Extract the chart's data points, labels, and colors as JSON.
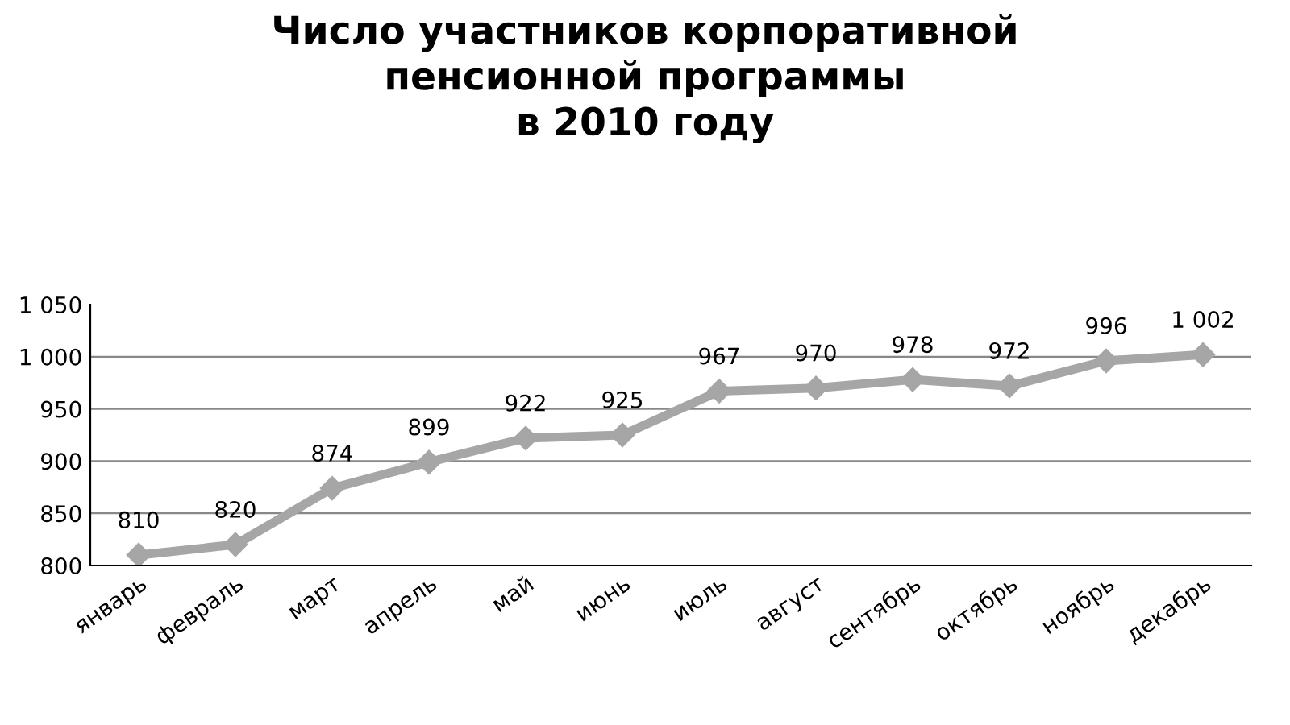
{
  "chart_data": {
    "type": "line",
    "title": "Число участников корпоративной\nпенсионной программы\nв 2010 году",
    "categories": [
      "январь",
      "февраль",
      "март",
      "апрель",
      "май",
      "июнь",
      "июль",
      "август",
      "сентябрь",
      "октябрь",
      "ноябрь",
      "декабрь"
    ],
    "series": [
      {
        "color": "#a6a6a6",
        "values": [
          810,
          820,
          874,
          899,
          922,
          925,
          967,
          970,
          978,
          972,
          996,
          1002
        ]
      }
    ],
    "value_labels": [
      "810",
      "820",
      "874",
      "899",
      "922",
      "925",
      "967",
      "970",
      "978",
      "972",
      "996",
      "1 002"
    ],
    "ylim": [
      800,
      1050
    ],
    "yticks": [
      800,
      850,
      900,
      950,
      {
        "value": 1000,
        "label": "1 000"
      },
      {
        "value": 1050,
        "label": "1 050"
      }
    ],
    "grid": "y",
    "marker": "diamond",
    "line_style": "solid",
    "legend": false
  }
}
